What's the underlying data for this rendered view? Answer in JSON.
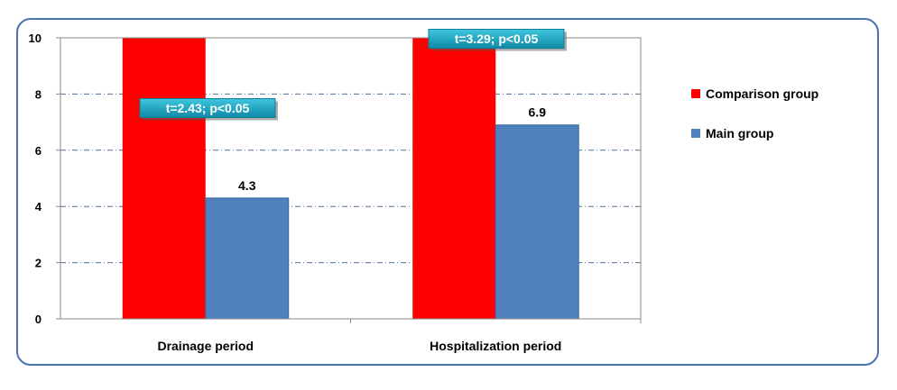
{
  "chart_data": {
    "type": "bar",
    "categories": [
      "Drainage period",
      "Hospitalization period"
    ],
    "series": [
      {
        "name": "Comparison group",
        "color": "#ff0000",
        "values": [
          10,
          10
        ]
      },
      {
        "name": "Main group",
        "color": "#4f81bd",
        "values": [
          4.3,
          6.9
        ]
      }
    ],
    "data_labels": [
      "4.3",
      "6.9"
    ],
    "yticks": [
      "0",
      "2",
      "4",
      "6",
      "8",
      "10"
    ],
    "ylim": [
      0,
      10
    ],
    "grid": true,
    "legend_position": "right",
    "annotations": [
      "t=2.43; p<0.05",
      "t=3.29; p<0.05"
    ],
    "annotation_color": "#1ba8c4"
  }
}
